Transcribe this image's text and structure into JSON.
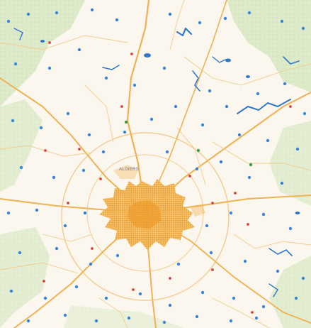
{
  "map": {
    "city_label": "ALGIERS",
    "colors": {
      "background": "#fbf7ee",
      "greenland": "#d9e9c4",
      "greenland_dark": "#c6dda9",
      "urban": "#f2b04a",
      "urban_core": "#ee9a2a",
      "major_road": "#efb153",
      "minor_road": "#f1cc8c",
      "ring_road": "#f2c37e",
      "water": "#2f78c9",
      "water_dot": "#3a86d6",
      "junction_red": "#d8443a",
      "junction_green": "#3d9b4a",
      "label": "#6b6b9a"
    }
  }
}
